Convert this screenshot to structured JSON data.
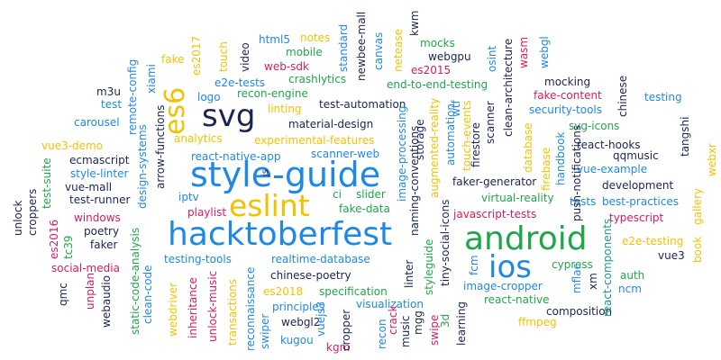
{
  "colors": {
    "blue": "#1e88e5",
    "green": "#1fa64a",
    "gold": "#f2c200",
    "red": "#d81b60",
    "navy": "#1b2452",
    "teal": "#1a9a8a"
  },
  "words": [
    {
      "text": "style-guide",
      "color": "blue"
    },
    {
      "text": "hacktoberfest",
      "color": "blue"
    },
    {
      "text": "eslint",
      "color": "gold"
    },
    {
      "text": "android",
      "color": "green"
    },
    {
      "text": "ios",
      "color": "blue"
    },
    {
      "text": "svg",
      "color": "navy"
    },
    {
      "text": "es6",
      "color": "gold"
    },
    {
      "text": "react-native-app",
      "color": "blue"
    },
    {
      "text": "experimental-features",
      "color": "gold"
    },
    {
      "text": "material-design",
      "color": "navy"
    },
    {
      "text": "scanner-web",
      "color": "blue"
    },
    {
      "text": "test-automation",
      "color": "navy"
    },
    {
      "text": "realtime-database",
      "color": "blue"
    },
    {
      "text": "chinese-poetry",
      "color": "navy"
    },
    {
      "text": "specification",
      "color": "green"
    },
    {
      "text": "principles",
      "color": "blue"
    },
    {
      "text": "visualization",
      "color": "blue"
    },
    {
      "text": "testing-tools",
      "color": "blue"
    },
    {
      "text": "es2018",
      "color": "gold"
    },
    {
      "text": "webgl2",
      "color": "navy"
    },
    {
      "text": "kugou",
      "color": "blue"
    },
    {
      "text": "kgm",
      "color": "red"
    },
    {
      "text": "analytics",
      "color": "gold"
    },
    {
      "text": "slider",
      "color": "green"
    },
    {
      "text": "fake-data",
      "color": "green"
    },
    {
      "text": "ci",
      "color": "green"
    },
    {
      "text": "iptv",
      "color": "blue"
    },
    {
      "text": "playlist",
      "color": "red"
    },
    {
      "text": "logo",
      "color": "blue"
    },
    {
      "text": "recon-engine",
      "color": "green"
    },
    {
      "text": "e2e-tests",
      "color": "blue"
    },
    {
      "text": "crashlytics",
      "color": "green"
    },
    {
      "text": "linting",
      "color": "gold"
    },
    {
      "text": "web-sdk",
      "color": "red"
    },
    {
      "text": "mobile",
      "color": "green"
    },
    {
      "text": "notes",
      "color": "gold"
    },
    {
      "text": "html5",
      "color": "blue"
    },
    {
      "text": "fake",
      "color": "gold"
    },
    {
      "text": "es2017",
      "color": "gold"
    },
    {
      "text": "m3u",
      "color": "navy"
    },
    {
      "text": "test",
      "color": "blue"
    },
    {
      "text": "xiami",
      "color": "blue"
    },
    {
      "text": "carousel",
      "color": "blue"
    },
    {
      "text": "vue3-demo",
      "color": "gold"
    },
    {
      "text": "ecmascript",
      "color": "navy"
    },
    {
      "text": "style-linter",
      "color": "blue"
    },
    {
      "text": "vue-mall",
      "color": "navy"
    },
    {
      "text": "test-runner",
      "color": "navy"
    },
    {
      "text": "windows",
      "color": "red"
    },
    {
      "text": "poetry",
      "color": "navy"
    },
    {
      "text": "faker",
      "color": "navy"
    },
    {
      "text": "es2016",
      "color": "red"
    },
    {
      "text": "social-media",
      "color": "red"
    },
    {
      "text": "mocks",
      "color": "green"
    },
    {
      "text": "webgpu",
      "color": "navy"
    },
    {
      "text": "end-to-end-testing",
      "color": "green"
    },
    {
      "text": "es2015",
      "color": "red"
    },
    {
      "text": "mocking",
      "color": "navy"
    },
    {
      "text": "fake-content",
      "color": "red"
    },
    {
      "text": "security-tools",
      "color": "blue"
    },
    {
      "text": "testing",
      "color": "blue"
    },
    {
      "text": "svg-icons",
      "color": "green"
    },
    {
      "text": "react-hooks",
      "color": "navy"
    },
    {
      "text": "qqmusic",
      "color": "navy"
    },
    {
      "text": "vue-example",
      "color": "blue"
    },
    {
      "text": "development",
      "color": "navy"
    },
    {
      "text": "best-practices",
      "color": "blue"
    },
    {
      "text": "tests",
      "color": "blue"
    },
    {
      "text": "typescript",
      "color": "red"
    },
    {
      "text": "faker-generator",
      "color": "navy"
    },
    {
      "text": "virtual-reality",
      "color": "green"
    },
    {
      "text": "javascript-tests",
      "color": "red"
    },
    {
      "text": "image-cropper",
      "color": "blue"
    },
    {
      "text": "react-native",
      "color": "green"
    },
    {
      "text": "composition",
      "color": "navy"
    },
    {
      "text": "ffmpeg",
      "color": "gold"
    },
    {
      "text": "cypress",
      "color": "green"
    },
    {
      "text": "e2e-testing",
      "color": "gold"
    },
    {
      "text": "auth",
      "color": "green"
    },
    {
      "text": "ncm",
      "color": "blue"
    },
    {
      "text": "vue3",
      "color": "navy"
    },
    {
      "text": "touch",
      "color": "gold"
    },
    {
      "text": "video",
      "color": "navy"
    },
    {
      "text": "standard",
      "color": "blue"
    },
    {
      "text": "newbee-mall",
      "color": "navy"
    },
    {
      "text": "canvas",
      "color": "blue"
    },
    {
      "text": "netease",
      "color": "gold"
    },
    {
      "text": "kwm",
      "color": "navy"
    },
    {
      "text": "osint",
      "color": "blue"
    },
    {
      "text": "wasm",
      "color": "red"
    },
    {
      "text": "webgl",
      "color": "blue"
    },
    {
      "text": "clean-architecture",
      "color": "navy"
    },
    {
      "text": "chinese",
      "color": "navy"
    },
    {
      "text": "remote-config",
      "color": "blue"
    },
    {
      "text": "arrow-functions",
      "color": "navy"
    },
    {
      "text": "design-systems",
      "color": "blue"
    },
    {
      "text": "test-suite",
      "color": "green"
    },
    {
      "text": "croppers",
      "color": "navy"
    },
    {
      "text": "unlock",
      "color": "navy"
    },
    {
      "text": "tc39",
      "color": "green"
    },
    {
      "text": "qmc",
      "color": "navy"
    },
    {
      "text": "unplan",
      "color": "red"
    },
    {
      "text": "webaudio",
      "color": "navy"
    },
    {
      "text": "static-code-analysis",
      "color": "green"
    },
    {
      "text": "clean-code",
      "color": "blue"
    },
    {
      "text": "webdriver",
      "color": "gold"
    },
    {
      "text": "inheritance",
      "color": "red"
    },
    {
      "text": "unlock-music",
      "color": "red"
    },
    {
      "text": "transactions",
      "color": "gold"
    },
    {
      "text": "reconnaissance",
      "color": "blue"
    },
    {
      "text": "swiper",
      "color": "blue"
    },
    {
      "text": "vuejs3",
      "color": "blue"
    },
    {
      "text": "cropper",
      "color": "navy"
    },
    {
      "text": "recon",
      "color": "blue"
    },
    {
      "text": "music",
      "color": "navy"
    },
    {
      "text": "mgg",
      "color": "navy"
    },
    {
      "text": "crack",
      "color": "red"
    },
    {
      "text": "3d",
      "color": "green"
    },
    {
      "text": "swipe",
      "color": "red"
    },
    {
      "text": "learning",
      "color": "navy"
    },
    {
      "text": "linter",
      "color": "navy"
    },
    {
      "text": "fcm",
      "color": "blue"
    },
    {
      "text": "styleguide",
      "color": "green"
    },
    {
      "text": "tiny-social-icons",
      "color": "navy"
    },
    {
      "text": "naming-conventions",
      "color": "navy"
    },
    {
      "text": "image-processing",
      "color": "blue"
    },
    {
      "text": "storage",
      "color": "navy"
    },
    {
      "text": "automation",
      "color": "blue"
    },
    {
      "text": "augmented-reality",
      "color": "gold"
    },
    {
      "text": "wtf",
      "color": "blue"
    },
    {
      "text": "firestore",
      "color": "navy"
    },
    {
      "text": "touch-events",
      "color": "gold"
    },
    {
      "text": "scanner",
      "color": "navy"
    },
    {
      "text": "database",
      "color": "gold"
    },
    {
      "text": "firebase",
      "color": "gold"
    },
    {
      "text": "handbook",
      "color": "blue"
    },
    {
      "text": "push-notifications",
      "color": "navy"
    },
    {
      "text": "mflac",
      "color": "blue"
    },
    {
      "text": "xm",
      "color": "navy"
    },
    {
      "text": "react-components",
      "color": "teal"
    },
    {
      "text": "gallery",
      "color": "gold"
    },
    {
      "text": "book",
      "color": "gold"
    },
    {
      "text": "webxr",
      "color": "gold"
    },
    {
      "text": "tangshi",
      "color": "navy"
    },
    {
      "text": "js",
      "color": "navy"
    }
  ]
}
